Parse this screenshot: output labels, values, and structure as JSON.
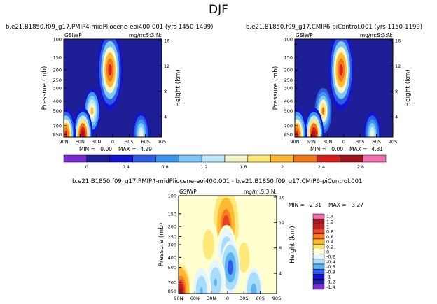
{
  "figure_title": "DJF",
  "chart_data": [
    {
      "type": "heatmap",
      "title": "b.e21.B1850.f09_g17.PMIP4-midPliocene-eoi400.001 (yrs 1450-1499)",
      "left_label": "GSIWP",
      "units": "mg/m:S:3:N:",
      "ylabel": "Pressure (mb)",
      "right_label": "Height (km)",
      "x_ticks": [
        "90N",
        "60N",
        "30N",
        "0",
        "30S",
        "60S",
        "90S"
      ],
      "y_ticks": [
        "100",
        "150",
        "200",
        "250",
        "300",
        "400",
        "500",
        "700",
        "850"
      ],
      "height_ticks": [
        "16",
        "12",
        "8",
        "4"
      ],
      "min_label": "MIN =",
      "min_value": "0.00",
      "max_label": "MAX =",
      "max_value": "4.29",
      "peaks": [
        {
          "lat": 5,
          "p": 200,
          "value": 2.9
        },
        {
          "lat": 38,
          "p": 500,
          "value": 2.1
        },
        {
          "lat": 55,
          "p": 850,
          "value": 3.2
        },
        {
          "lat": 86,
          "p": 850,
          "value": 2.9
        },
        {
          "lat": -52,
          "p": 850,
          "value": 1.7
        }
      ]
    },
    {
      "type": "heatmap",
      "title": "b.e21.B1850.f09_g17.CMIP6-piControl.001 (yrs 1150-1199)",
      "left_label": "GSIWP",
      "units": "mg/m:S:3:N:",
      "ylabel": "Pressure (mb)",
      "right_label": "Height (km)",
      "x_ticks": [
        "90N",
        "60N",
        "30N",
        "0",
        "30S",
        "60S",
        "90S"
      ],
      "y_ticks": [
        "100",
        "150",
        "200",
        "250",
        "300",
        "400",
        "500",
        "700",
        "850"
      ],
      "height_ticks": [
        "16",
        "12",
        "8",
        "4"
      ],
      "min_label": "MIN =",
      "min_value": "0.00",
      "max_label": "MAX =",
      "max_value": "4.31",
      "peaks": [
        {
          "lat": 5,
          "p": 200,
          "value": 2.9
        },
        {
          "lat": 38,
          "p": 500,
          "value": 2.3
        },
        {
          "lat": 55,
          "p": 850,
          "value": 3.3
        },
        {
          "lat": 86,
          "p": 850,
          "value": 3.0
        },
        {
          "lat": -52,
          "p": 850,
          "value": 1.7
        }
      ]
    },
    {
      "type": "heatmap",
      "title": "b.e21.B1850.f09_g17.PMIP4-midPliocene-eoi400.001 - b.e21.B1850.f09_g17.CMIP6-piControl.001",
      "left_label": "GSIWP",
      "units": "mg/m:S:3:N:",
      "ylabel": "Pressure (mb)",
      "right_label": "Height (km)",
      "x_ticks": [
        "90N",
        "60N",
        "30N",
        "0",
        "30S",
        "60S",
        "90S"
      ],
      "y_ticks": [
        "100",
        "150",
        "200",
        "250",
        "300",
        "400",
        "500",
        "700",
        "850"
      ],
      "height_ticks": [
        "16",
        "12",
        "8",
        "4"
      ],
      "min_label": "MIN =",
      "min_value": "-2.31",
      "max_label": "MAX =",
      "max_value": "3.27",
      "peaks": [
        {
          "lat": 3,
          "p": 200,
          "value": 1.1
        },
        {
          "lat": 86,
          "p": 850,
          "value": 1.5
        },
        {
          "lat": -30,
          "p": 400,
          "value": 0.25
        },
        {
          "lat": 35,
          "p": 300,
          "value": 0.2
        },
        {
          "lat": 2,
          "p": 350,
          "value": -0.5
        },
        {
          "lat": -5,
          "p": 500,
          "value": -0.9
        },
        {
          "lat": 22,
          "p": 700,
          "value": -0.5
        },
        {
          "lat": 48,
          "p": 850,
          "value": -0.5
        },
        {
          "lat": -48,
          "p": 850,
          "value": -0.6
        }
      ]
    }
  ],
  "colorbar_abs": {
    "labels": [
      "0",
      "0.4",
      "0.8",
      "1.2",
      "1.6",
      "2",
      "2.4",
      "2.8"
    ],
    "colors": [
      "#7B2BD6",
      "#1E1E96",
      "#1313D2",
      "#2E5EE8",
      "#3C96F0",
      "#7EC8F8",
      "#BFE8FC",
      "#F6F6C8",
      "#FFE878",
      "#FFB830",
      "#F07818",
      "#D8201C",
      "#A0141C",
      "#F070B0"
    ]
  },
  "colorbar_diff": {
    "labels": [
      "1.4",
      "1.2",
      "1",
      "0.8",
      "0.6",
      "0.4",
      "0.2",
      "0",
      "-0.2",
      "-0.4",
      "-0.6",
      "-0.8",
      "-1",
      "-1.2",
      "-1.4"
    ],
    "colors": [
      "#F070B0",
      "#A0141C",
      "#C81A1E",
      "#E8401E",
      "#F87C20",
      "#FFB830",
      "#FFE878",
      "#FFFFD0",
      "#E6F6FF",
      "#A8DDFA",
      "#5CB4F0",
      "#2E5EE8",
      "#1313D2",
      "#1E1E96",
      "#7B2BD6"
    ]
  }
}
